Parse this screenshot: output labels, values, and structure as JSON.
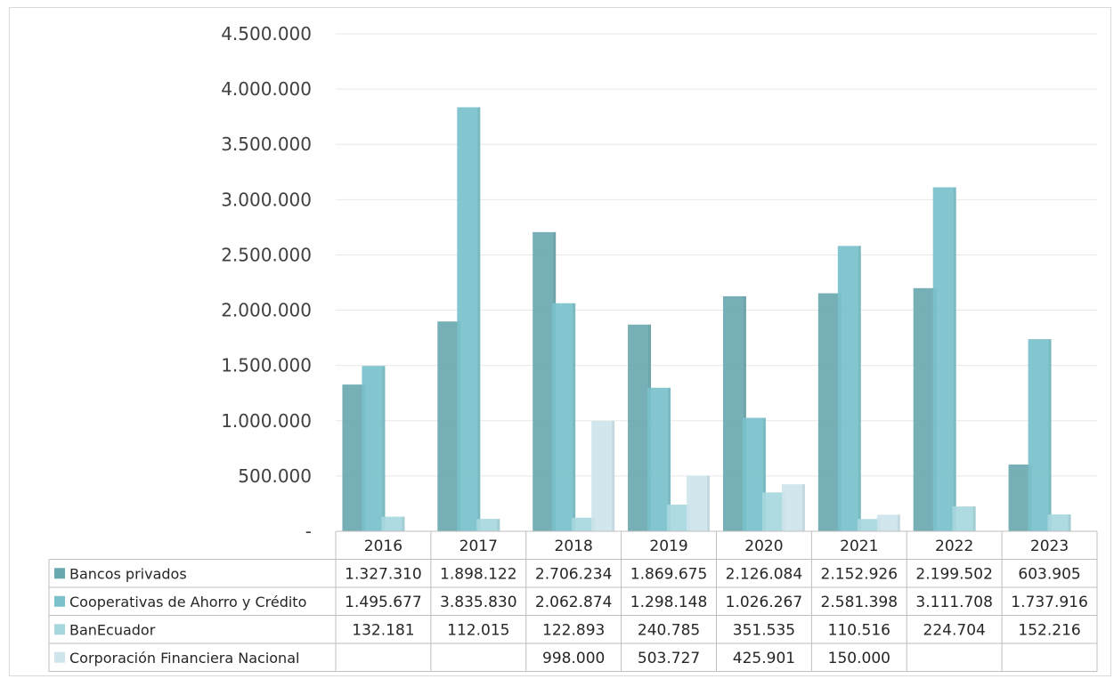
{
  "chart_data": {
    "type": "bar",
    "categories": [
      "2016",
      "2017",
      "2018",
      "2019",
      "2020",
      "2021",
      "2022",
      "2023"
    ],
    "ylim": [
      0,
      4500000
    ],
    "yticks": [
      0,
      500000,
      1000000,
      1500000,
      2000000,
      2500000,
      3000000,
      3500000,
      4000000,
      4500000
    ],
    "ytick_labels": [
      "-",
      "500.000",
      "1.000.000",
      "1.500.000",
      "2.000.000",
      "2.500.000",
      "3.000.000",
      "3.500.000",
      "4.000.000",
      "4.500.000"
    ],
    "grid": true,
    "legend": "data-table",
    "series": [
      {
        "name": "Bancos privados",
        "color": "#6aa8b0",
        "values": [
          1327310,
          1898122,
          2706234,
          1869675,
          2126084,
          2152926,
          2199502,
          603905
        ],
        "labels": [
          "1.327.310",
          "1.898.122",
          "2.706.234",
          "1.869.675",
          "2.126.084",
          "2.152.926",
          "2.199.502",
          "603.905"
        ]
      },
      {
        "name": "Cooperativas de Ahorro y Crédito",
        "color": "#7ac1cb",
        "values": [
          1495677,
          3835830,
          2062874,
          1298148,
          1026267,
          2581398,
          3111708,
          1737916
        ],
        "labels": [
          "1.495.677",
          "3.835.830",
          "2.062.874",
          "1.298.148",
          "1.026.267",
          "2.581.398",
          "3.111.708",
          "1.737.916"
        ]
      },
      {
        "name": "BanEcuador",
        "color": "#a7d7de",
        "values": [
          132181,
          112015,
          122893,
          240785,
          351535,
          110516,
          224704,
          152216
        ],
        "labels": [
          "132.181",
          "112.015",
          "122.893",
          "240.785",
          "351.535",
          "110.516",
          "224.704",
          "152.216"
        ]
      },
      {
        "name": "Corporación Financiera Nacional",
        "color": "#cde5eb",
        "values": [
          null,
          null,
          998000,
          503727,
          425901,
          150000,
          null,
          null
        ],
        "labels": [
          "",
          "",
          "998.000",
          "503.727",
          "425.901",
          "150.000",
          "",
          ""
        ]
      }
    ]
  }
}
